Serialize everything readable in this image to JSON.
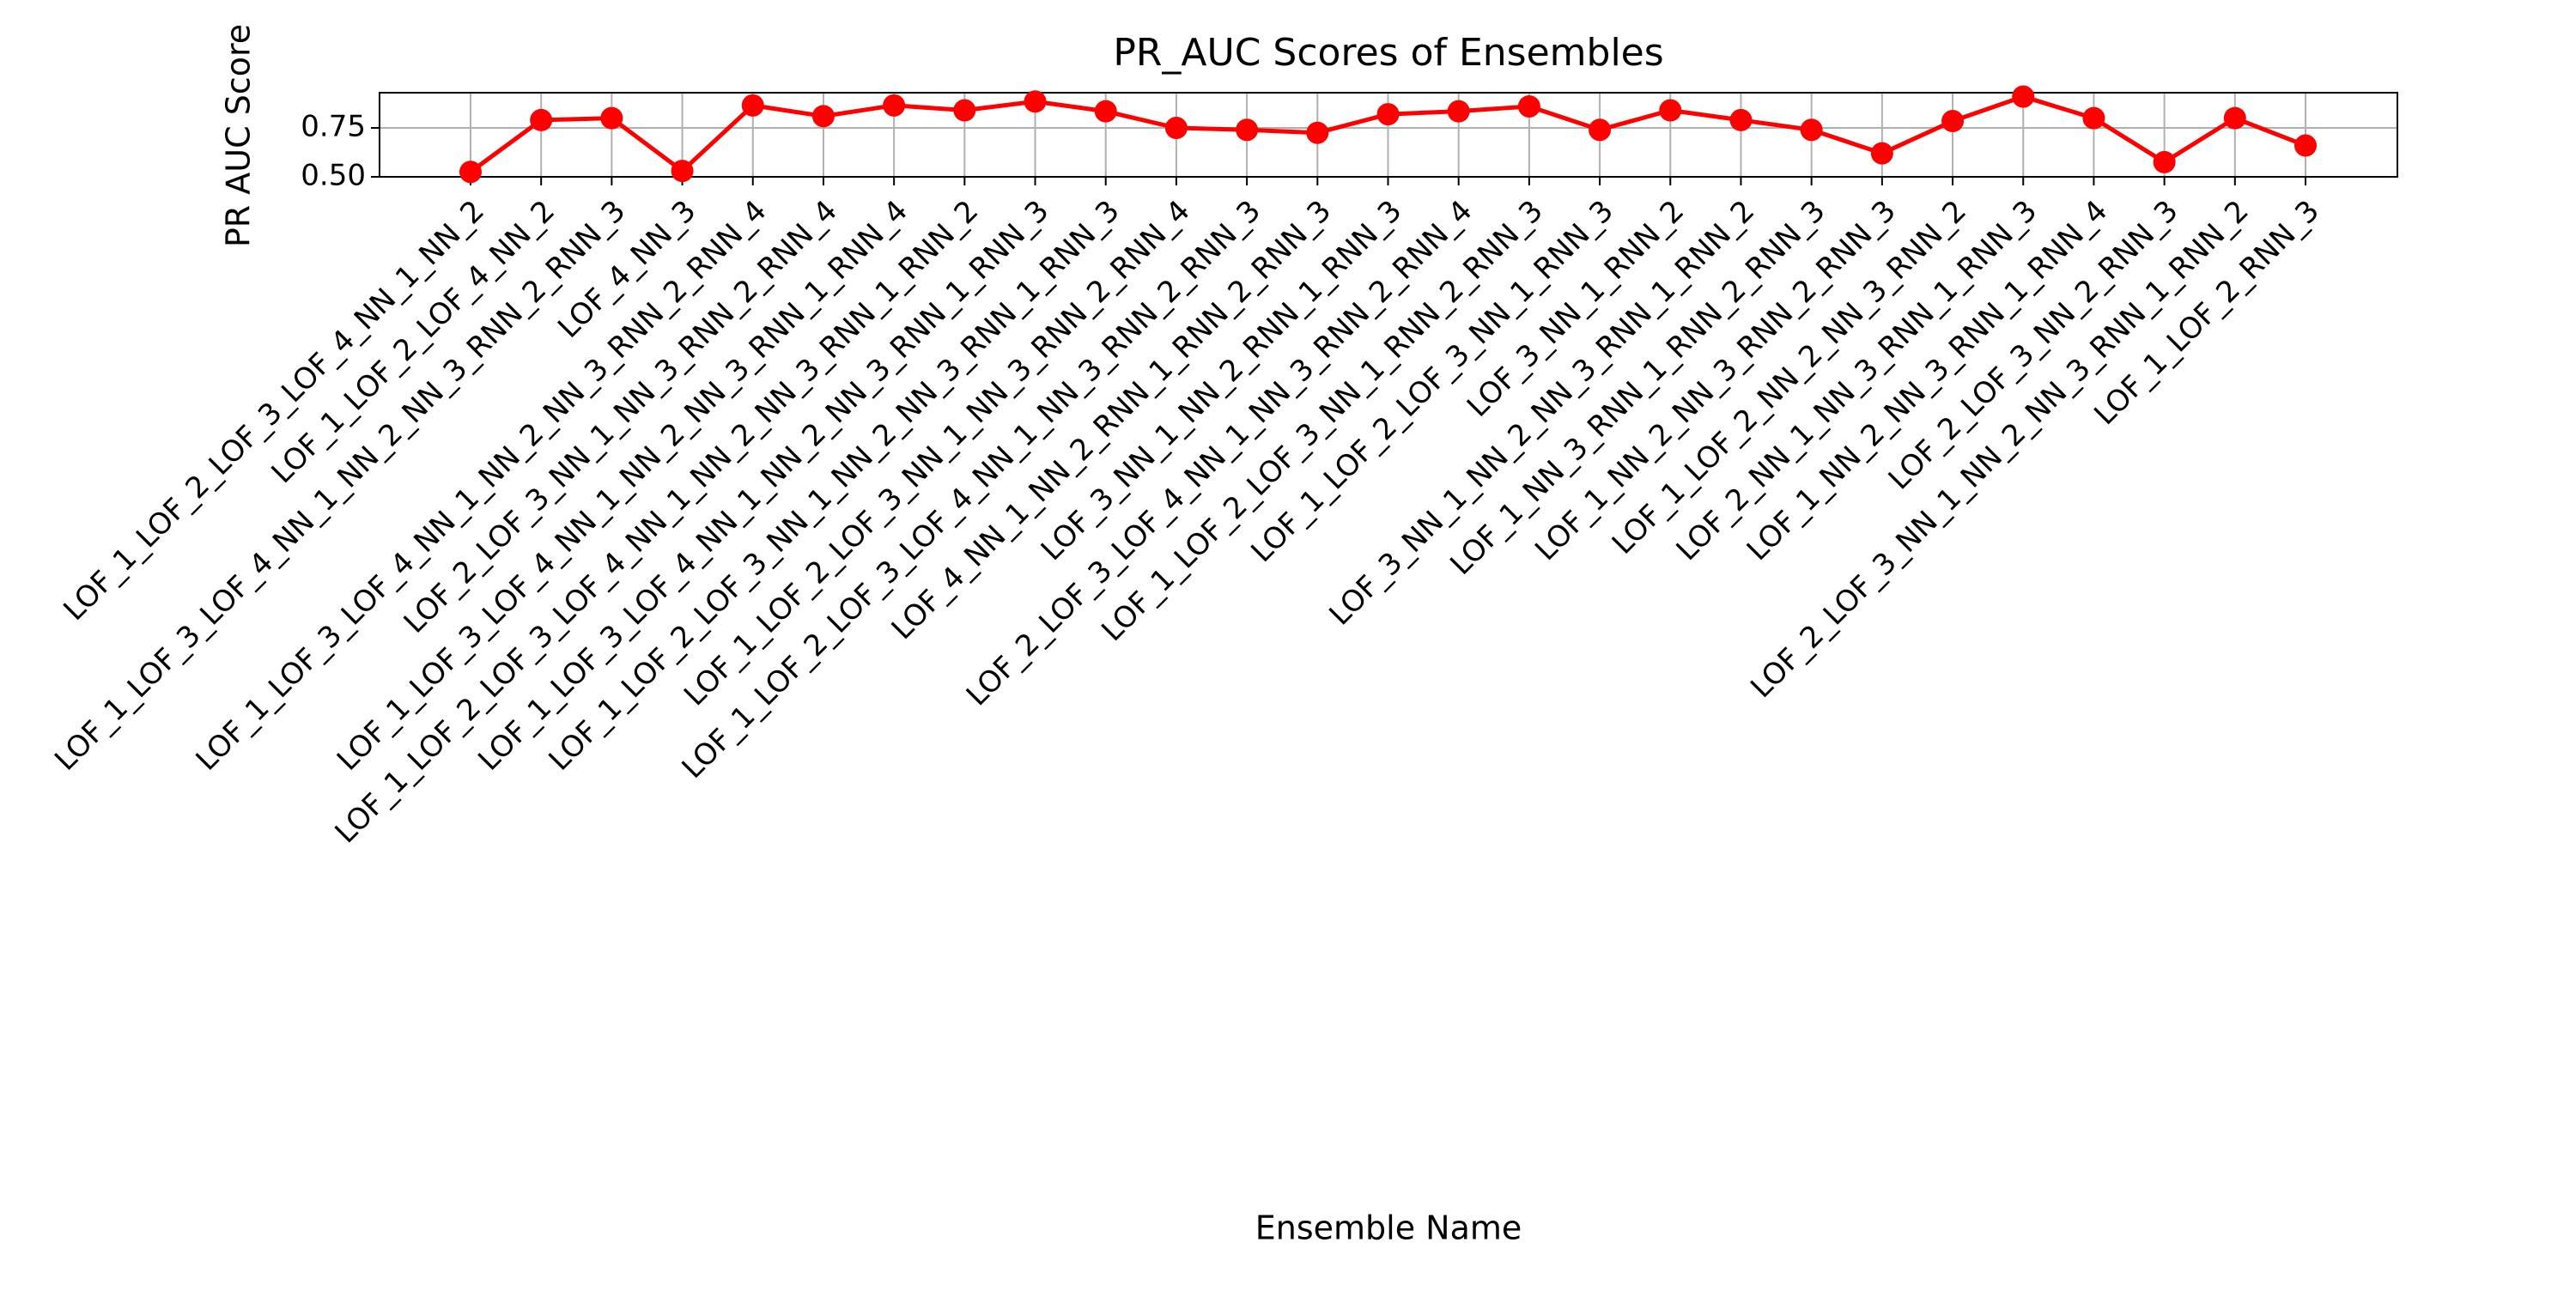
{
  "chart_data": {
    "type": "line",
    "title": "PR_AUC Scores of Ensembles",
    "x_label": "Ensemble Name",
    "y_label": "PR AUC Score",
    "categories": [
      "LOF_1_LOF_2_LOF_3_LOF_4_NN_1_NN_2",
      "LOF_1_LOF_2_LOF_4_NN_2",
      "LOF_1_LOF_3_LOF_4_NN_1_NN_2_NN_3_RNN_2_RNN_3",
      "LOF_4_NN_3",
      "LOF_1_LOF_3_LOF_4_NN_1_NN_2_NN_3_RNN_2_RNN_4",
      "LOF_2_LOF_3_NN_1_NN_3_RNN_2_RNN_4",
      "LOF_1_LOF_3_LOF_4_NN_1_NN_2_NN_3_RNN_1_RNN_4",
      "LOF_1_LOF_2_LOF_3_LOF_4_NN_1_NN_2_NN_3_RNN_1_RNN_2",
      "LOF_1_LOF_3_LOF_4_NN_1_NN_2_NN_3_RNN_1_RNN_3",
      "LOF_1_LOF_2_LOF_3_NN_1_NN_2_NN_3_RNN_1_RNN_3",
      "LOF_1_LOF_2_LOF_3_NN_1_NN_3_RNN_2_RNN_4",
      "LOF_1_LOF_2_LOF_3_LOF_4_NN_1_NN_3_RNN_2_RNN_3",
      "LOF_4_NN_1_NN_2_RNN_1_RNN_2_RNN_3",
      "LOF_3_NN_1_NN_2_RNN_1_RNN_3",
      "LOF_2_LOF_3_LOF_4_NN_1_NN_3_RNN_2_RNN_4",
      "LOF_1_LOF_2_LOF_3_NN_1_RNN_2_RNN_3",
      "LOF_1_LOF_2_LOF_3_NN_1_RNN_3",
      "LOF_3_NN_1_RNN_2",
      "LOF_3_NN_1_NN_2_NN_3_RNN_1_RNN_2",
      "LOF_1_NN_3_RNN_1_RNN_2_RNN_3",
      "LOF_1_NN_2_NN_3_RNN_2_RNN_3",
      "LOF_1_LOF_2_NN_2_NN_3_RNN_2",
      "LOF_2_NN_1_NN_3_RNN_1_RNN_3",
      "LOF_1_NN_2_NN_3_RNN_1_RNN_4",
      "LOF_2_LOF_3_NN_2_RNN_3",
      "LOF_2_LOF_3_NN_1_NN_2_NN_3_RNN_1_RNN_2",
      "LOF_1_LOF_2_RNN_3"
    ],
    "series": [
      {
        "name": "PR_AUC",
        "color": "#ff0000",
        "values": [
          0.525,
          0.79,
          0.8,
          0.53,
          0.865,
          0.81,
          0.865,
          0.84,
          0.885,
          0.835,
          0.75,
          0.74,
          0.725,
          0.82,
          0.835,
          0.86,
          0.74,
          0.84,
          0.79,
          0.74,
          0.62,
          0.785,
          0.91,
          0.8,
          0.575,
          0.8,
          0.66
        ]
      }
    ],
    "ylim": [
      0.5,
      0.93
    ],
    "yticks": [
      {
        "value": 0.5,
        "label": "0.50"
      },
      {
        "value": 0.75,
        "label": "0.75"
      }
    ],
    "grid": true
  }
}
